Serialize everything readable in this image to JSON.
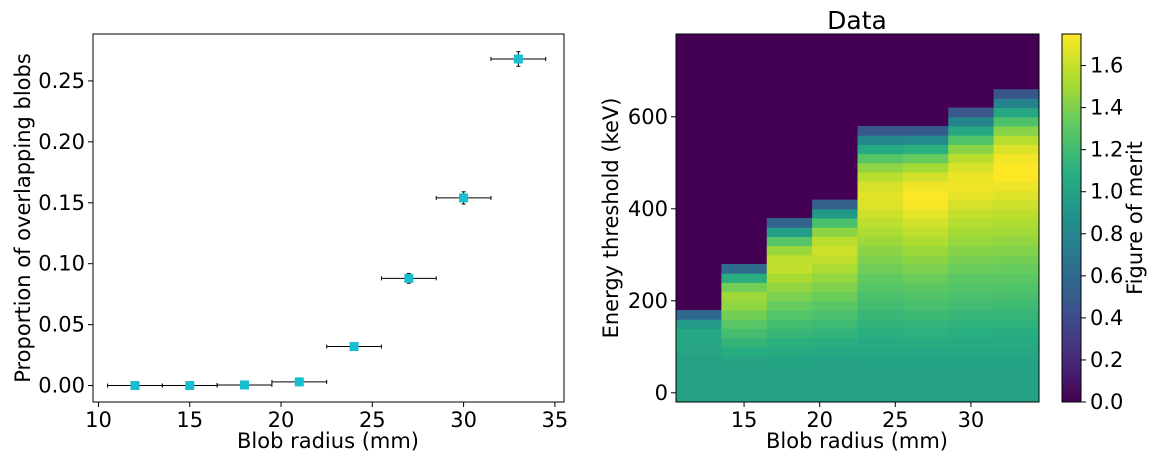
{
  "chart_data": [
    {
      "type": "scatter",
      "title": "",
      "xlabel": "Blob radius (mm)",
      "ylabel": "Proportion of overlapping blobs",
      "xlim": [
        9.7,
        35.5
      ],
      "ylim": [
        -0.0135,
        0.2885
      ],
      "xticks": [
        10,
        15,
        20,
        25,
        30,
        35
      ],
      "xtick_labels": [
        "10",
        "15",
        "20",
        "25",
        "30",
        "35"
      ],
      "yticks": [
        0.0,
        0.05,
        0.1,
        0.15,
        0.2,
        0.25
      ],
      "ytick_labels": [
        "0.00",
        "0.05",
        "0.10",
        "0.15",
        "0.20",
        "0.25"
      ],
      "marker_color": "#17becf",
      "errorbar_color": "#000000",
      "series": [
        {
          "x": [
            12,
            15,
            18,
            21,
            24,
            27,
            30,
            33
          ],
          "y": [
            0.0,
            0.0,
            0.0005,
            0.003,
            0.032,
            0.088,
            0.154,
            0.268
          ],
          "x_err": [
            1.5,
            1.5,
            1.5,
            1.5,
            1.5,
            1.5,
            1.5,
            1.5
          ],
          "y_err": [
            0.0005,
            0.0005,
            0.001,
            0.0015,
            0.002,
            0.004,
            0.005,
            0.006
          ]
        }
      ]
    },
    {
      "type": "heatmap",
      "title": "Data",
      "xlabel": "Blob radius (mm)",
      "ylabel": "Energy threshold (keV)",
      "xlim": [
        10.5,
        34.5
      ],
      "ylim": [
        -20,
        780
      ],
      "xticks": [
        15,
        20,
        25,
        30
      ],
      "xtick_labels": [
        "15",
        "20",
        "25",
        "30"
      ],
      "yticks": [
        0,
        200,
        400,
        600
      ],
      "ytick_labels": [
        "0",
        "200",
        "400",
        "600"
      ],
      "x": [
        12,
        15,
        18,
        21,
        24,
        27,
        30,
        33
      ],
      "y_step": 20,
      "column_max_threshold": [
        180,
        280,
        380,
        420,
        580,
        580,
        620,
        660
      ],
      "fom_peak": [
        1.05,
        1.5,
        1.6,
        1.62,
        1.68,
        1.75,
        1.72,
        1.76
      ],
      "colormap": "viridis",
      "colorbar": {
        "label": "Figure of merit",
        "range": [
          0.0,
          1.75
        ],
        "ticks": [
          0.0,
          0.2,
          0.4,
          0.6,
          0.8,
          1.0,
          1.2,
          1.4,
          1.6
        ],
        "tick_labels": [
          "0.0",
          "0.2",
          "0.4",
          "0.6",
          "0.8",
          "1.0",
          "1.2",
          "1.4",
          "1.6"
        ]
      }
    }
  ]
}
